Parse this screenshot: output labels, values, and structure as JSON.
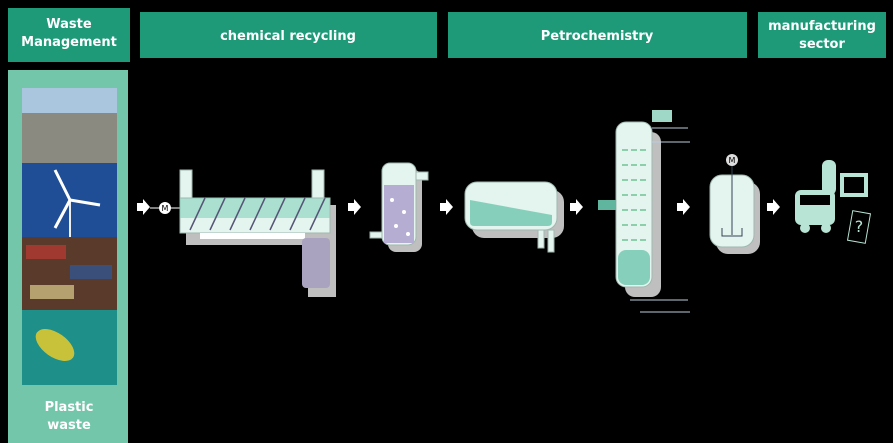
{
  "headers": {
    "waste": [
      "Waste",
      "Management"
    ],
    "chemical": "chemical recycling",
    "petro": "Petrochemistry",
    "manufacturing": [
      "manufacturing",
      "sector"
    ]
  },
  "source": [
    "Plastic",
    "waste"
  ],
  "motor_label": "M",
  "unknown_product": "?"
}
